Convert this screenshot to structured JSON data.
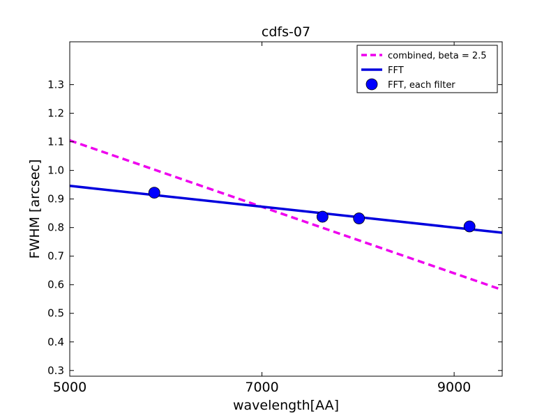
{
  "chart_data": {
    "type": "line",
    "title": "cdfs-07",
    "xlabel": "wavelength[AA]",
    "ylabel": "FWHM [arcsec]",
    "xlim": [
      5000,
      9500
    ],
    "ylim": [
      0.28,
      1.45
    ],
    "xticks": [
      5000,
      7000,
      9000
    ],
    "xtick_labels": [
      "5000",
      "7000",
      "9000"
    ],
    "yticks": [
      0.3,
      0.4,
      0.5,
      0.6,
      0.7,
      0.8,
      0.9,
      1.0,
      1.1,
      1.2,
      1.3
    ],
    "ytick_labels": [
      "0.3",
      "0.4",
      "0.5",
      "0.6",
      "0.7",
      "0.8",
      "0.9",
      "1.0",
      "1.1",
      "1.2",
      "1.3"
    ],
    "grid": false,
    "legend_position": "top-right",
    "series": [
      {
        "name": "combined, beta = 2.5",
        "kind": "line",
        "style": "dashed",
        "color": "#ee00ee",
        "x": [
          5000,
          9500
        ],
        "y": [
          1.105,
          0.582
        ]
      },
      {
        "name": "FFT",
        "kind": "line",
        "style": "solid",
        "color": "#0000dd",
        "x": [
          5000,
          9500
        ],
        "y": [
          0.946,
          0.782
        ]
      },
      {
        "name": "FFT, each filter",
        "kind": "scatter",
        "color": "#0000ff",
        "x": [
          5880,
          7630,
          8010,
          9160
        ],
        "y": [
          0.922,
          0.838,
          0.832,
          0.804
        ]
      }
    ]
  }
}
